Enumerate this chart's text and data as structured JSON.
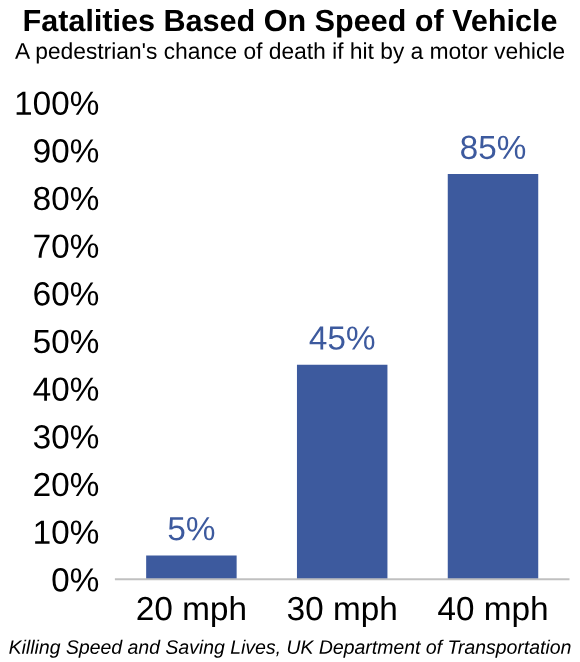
{
  "chart_data": {
    "type": "bar",
    "title": "Fatalities Based On Speed of Vehicle",
    "subtitle": "A pedestrian's chance of death if hit by a motor vehicle",
    "categories": [
      "20 mph",
      "30 mph",
      "40 mph"
    ],
    "values": [
      5,
      45,
      85
    ],
    "value_labels": [
      "5%",
      "45%",
      "85%"
    ],
    "color": "#3d5a9e",
    "ylim": [
      0,
      100
    ],
    "yticks": [
      {
        "value": 0,
        "label": "0%"
      },
      {
        "value": 10,
        "label": "10%"
      },
      {
        "value": 20,
        "label": "20%"
      },
      {
        "value": 30,
        "label": "30%"
      },
      {
        "value": 40,
        "label": "40%"
      },
      {
        "value": 50,
        "label": "50%"
      },
      {
        "value": 60,
        "label": "60%"
      },
      {
        "value": 70,
        "label": "70%"
      },
      {
        "value": 80,
        "label": "80%"
      },
      {
        "value": 90,
        "label": "90%"
      },
      {
        "value": 100,
        "label": "100%"
      }
    ],
    "grid": false,
    "annotations": [
      "Killing Speed and Saving Lives, UK Department of Transportation"
    ]
  }
}
